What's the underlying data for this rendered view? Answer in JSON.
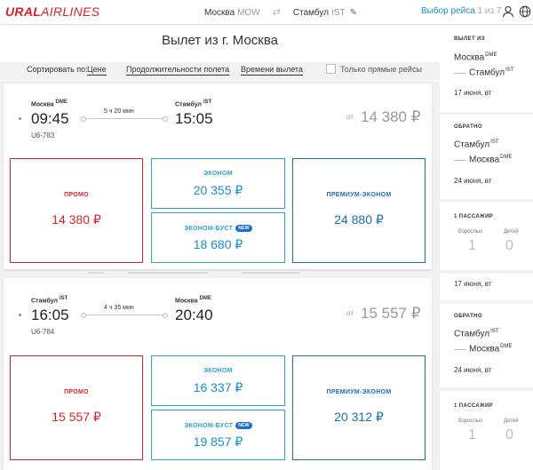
{
  "header": {
    "brand_bold": "URAL",
    "brand_rest": "AIRLINES",
    "from_city": "Москва",
    "from_code": "MOW",
    "to_city": "Стамбул",
    "to_code": "IST",
    "choose_label": "Выбор рейса",
    "step": "1 из 7"
  },
  "page": {
    "title": "Вылет из г. Москва",
    "sort_label": "Сортировать по:",
    "sort_price": "Цене",
    "sort_duration": "Продолжительности полета",
    "sort_departure": "Времени вылета",
    "direct_only": "Только прямые рейсы"
  },
  "flights": [
    {
      "dep_city": "Москва",
      "dep_code": "DME",
      "arr_city": "Стамбул",
      "arr_code": "IST",
      "dep_time": "09:45",
      "arr_time": "15:05",
      "duration": "5 ч 20 мин",
      "flight_no": "U6-783",
      "from_label": "от",
      "price_from": "14 380 ₽",
      "fares": {
        "promo": {
          "name": "ПРОМО",
          "price": "14 380 ₽"
        },
        "economy": {
          "name": "ЭКОНОМ",
          "price": "20 355 ₽"
        },
        "boost": {
          "name": "ЭКОНОМ-БУСТ",
          "badge": "NEW",
          "price": "18 680 ₽"
        },
        "premium": {
          "name": "ПРЕМИУМ-ЭКОНОМ",
          "price": "24 880 ₽"
        }
      }
    },
    {
      "dep_city": "Стамбул",
      "dep_code": "IST",
      "arr_city": "Москва",
      "arr_code": "DME",
      "dep_time": "16:05",
      "arr_time": "20:40",
      "duration": "4 ч 35 мин",
      "flight_no": "U6-784",
      "from_label": "от",
      "price_from": "15 557 ₽",
      "fares": {
        "promo": {
          "name": "ПРОМО",
          "price": "15 557 ₽"
        },
        "economy": {
          "name": "ЭКОНОМ",
          "price": "16 337 ₽"
        },
        "boost": {
          "name": "ЭКОНОМ-БУСТ",
          "badge": "NEW",
          "price": "19 857 ₽"
        },
        "premium": {
          "name": "ПРЕМИУМ-ЭКОНОМ",
          "price": "20 312 ₽"
        }
      }
    }
  ],
  "sidebar": {
    "out1": {
      "heading": "ВЫЛЕТ ИЗ",
      "from_city": "Москва",
      "from_code": "DME",
      "to_city": "Стамбул",
      "to_code": "IST",
      "date": "17 июня, вт"
    },
    "ret1": {
      "heading": "ОБРАТНО",
      "from_city": "Стамбул",
      "from_code": "IST",
      "to_city": "Москва",
      "to_code": "DME",
      "date": "24 июня, вт"
    },
    "pax1": {
      "heading": "1 ПАССАЖИР",
      "adults_label": "Взрослых",
      "adults": "1",
      "children_label": "Детей",
      "children": "0"
    },
    "date_repeat": "17 июня, вт",
    "ret2": {
      "heading": "ОБРАТНО",
      "from_city": "Стамбул",
      "from_code": "IST",
      "to_city": "Москва",
      "to_code": "DME",
      "date": "24 июня, вт"
    },
    "pax2": {
      "heading": "1 ПАССАЖИР",
      "adults_label": "Взрослых",
      "adults": "1",
      "children_label": "Детей",
      "children": "0"
    }
  },
  "colors": {
    "brand_red": "#d8232a",
    "link_blue": "#1b8ed1",
    "teal": "#2aa4c8",
    "premium_blue": "#1b6fb3"
  }
}
